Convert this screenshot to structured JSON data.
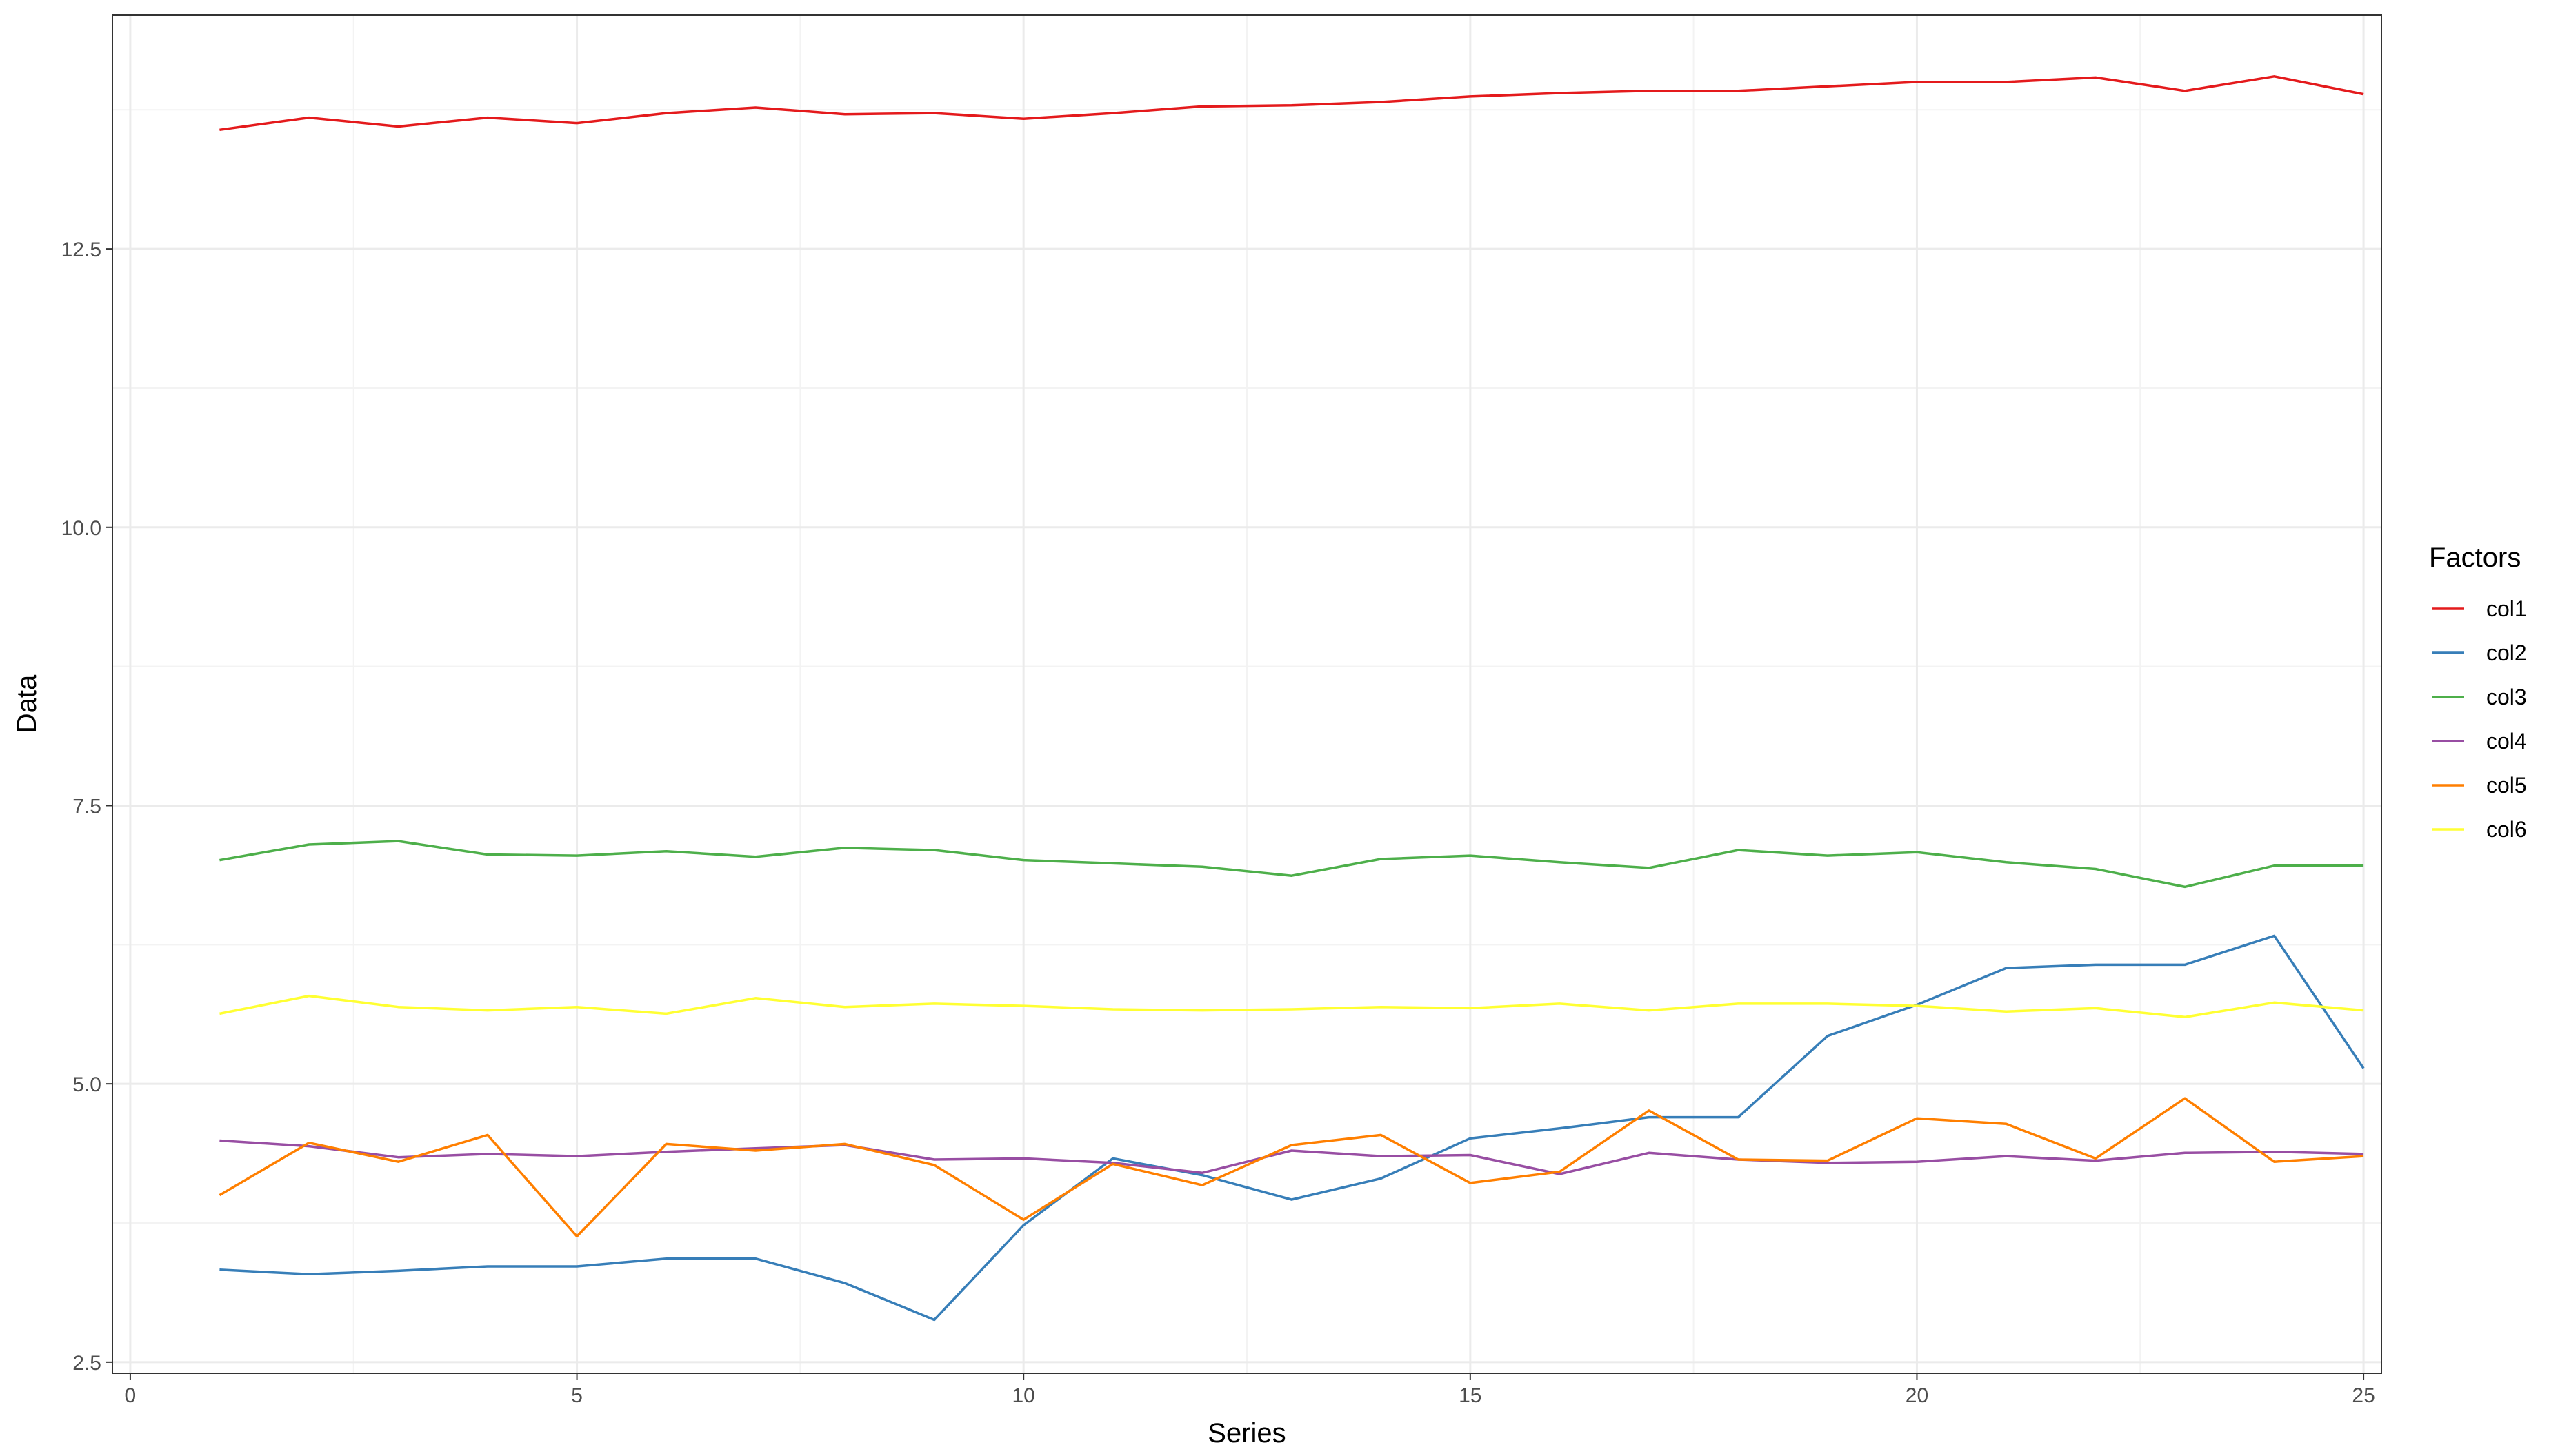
{
  "chart_data": {
    "type": "line",
    "xlabel": "Series",
    "ylabel": "Data",
    "legend_title": "Factors",
    "legend_position": "right",
    "grid": true,
    "xlim": [
      -0.2,
      25.2
    ],
    "ylim": [
      2.4,
      14.6
    ],
    "x_ticks": [
      0,
      5,
      10,
      15,
      20,
      25
    ],
    "x_tick_labels": [
      "0",
      "5",
      "10",
      "15",
      "20",
      "25"
    ],
    "y_ticks": [
      2.5,
      5.0,
      7.5,
      10.0,
      12.5
    ],
    "y_tick_labels": [
      "2.5",
      "5.0",
      "7.5",
      "10.0",
      "12.5"
    ],
    "x": [
      1,
      2,
      3,
      4,
      5,
      6,
      7,
      8,
      9,
      10,
      11,
      12,
      13,
      14,
      15,
      16,
      17,
      18,
      19,
      20,
      21,
      22,
      23,
      24,
      25
    ],
    "series": [
      {
        "name": "col1",
        "color": "#e41a1c",
        "values": [
          13.57,
          13.68,
          13.6,
          13.68,
          13.63,
          13.72,
          13.77,
          13.71,
          13.72,
          13.67,
          13.72,
          13.78,
          13.79,
          13.82,
          13.87,
          13.9,
          13.92,
          13.92,
          13.96,
          14.0,
          14.0,
          14.04,
          13.92,
          14.05,
          13.89
        ]
      },
      {
        "name": "col2",
        "color": "#377eb8",
        "values": [
          3.33,
          3.29,
          3.32,
          3.36,
          3.36,
          3.43,
          3.43,
          3.21,
          2.88,
          3.73,
          4.33,
          4.18,
          3.96,
          4.15,
          4.51,
          4.6,
          4.7,
          4.7,
          5.43,
          5.71,
          6.04,
          6.07,
          6.07,
          6.33,
          5.14
        ]
      },
      {
        "name": "col3",
        "color": "#4daf4a",
        "values": [
          7.01,
          7.15,
          7.18,
          7.06,
          7.05,
          7.09,
          7.04,
          7.12,
          7.1,
          7.01,
          6.98,
          6.95,
          6.87,
          7.02,
          7.05,
          6.99,
          6.94,
          7.1,
          7.05,
          7.08,
          6.99,
          6.93,
          6.77,
          6.96,
          6.96
        ]
      },
      {
        "name": "col4",
        "color": "#984ea3",
        "values": [
          4.49,
          4.44,
          4.34,
          4.37,
          4.35,
          4.39,
          4.42,
          4.45,
          4.32,
          4.33,
          4.29,
          4.2,
          4.4,
          4.35,
          4.36,
          4.19,
          4.38,
          4.32,
          4.29,
          4.3,
          4.35,
          4.31,
          4.38,
          4.39,
          4.37
        ]
      },
      {
        "name": "col5",
        "color": "#ff7f00",
        "values": [
          4.0,
          4.47,
          4.3,
          4.54,
          3.63,
          4.46,
          4.4,
          4.46,
          4.27,
          3.78,
          4.28,
          4.09,
          4.45,
          4.54,
          4.11,
          4.21,
          4.76,
          4.32,
          4.31,
          4.69,
          4.64,
          4.33,
          4.87,
          4.3,
          4.35
        ]
      },
      {
        "name": "col6",
        "color": "#ffff33",
        "values": [
          5.63,
          5.79,
          5.69,
          5.66,
          5.69,
          5.63,
          5.77,
          5.69,
          5.72,
          5.7,
          5.67,
          5.66,
          5.67,
          5.69,
          5.68,
          5.72,
          5.66,
          5.72,
          5.72,
          5.7,
          5.65,
          5.68,
          5.6,
          5.73,
          5.66
        ]
      }
    ]
  }
}
